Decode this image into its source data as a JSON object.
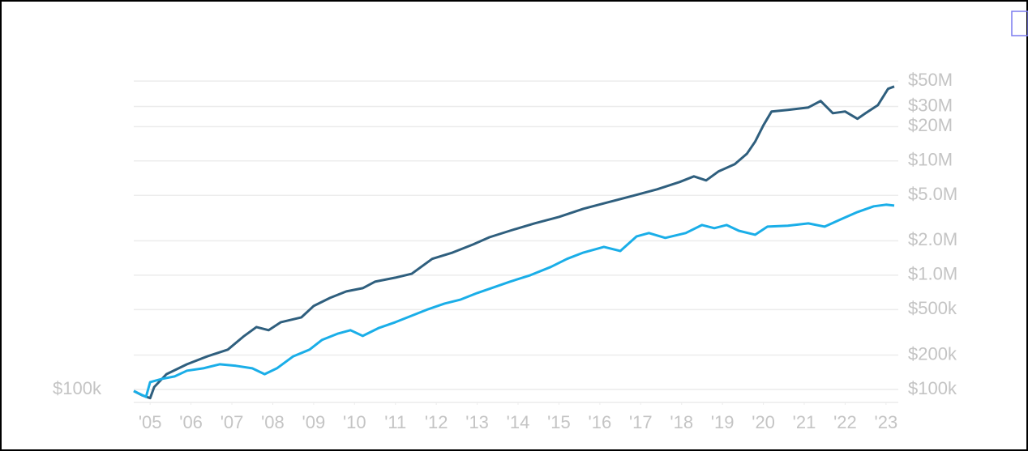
{
  "chart_data": {
    "type": "line",
    "annotation": "$100k",
    "log_scale": true,
    "grid": true,
    "xlim": [
      2004.6,
      2023.3
    ],
    "xticks": [
      {
        "value": 2005,
        "label": "'05"
      },
      {
        "value": 2006,
        "label": "'06"
      },
      {
        "value": 2007,
        "label": "'07"
      },
      {
        "value": 2008,
        "label": "'08"
      },
      {
        "value": 2009,
        "label": "'09"
      },
      {
        "value": 2010,
        "label": "'10"
      },
      {
        "value": 2011,
        "label": "'11"
      },
      {
        "value": 2012,
        "label": "'12"
      },
      {
        "value": 2013,
        "label": "'13"
      },
      {
        "value": 2014,
        "label": "'14"
      },
      {
        "value": 2015,
        "label": "'15"
      },
      {
        "value": 2016,
        "label": "'16"
      },
      {
        "value": 2017,
        "label": "'17"
      },
      {
        "value": 2018,
        "label": "'18"
      },
      {
        "value": 2019,
        "label": "'19"
      },
      {
        "value": 2020,
        "label": "'20"
      },
      {
        "value": 2021,
        "label": "'21"
      },
      {
        "value": 2022,
        "label": "'22"
      },
      {
        "value": 2023,
        "label": "'23"
      }
    ],
    "ylim": [
      77000,
      60000000
    ],
    "yticks": [
      {
        "value": 100000,
        "label": "$100k"
      },
      {
        "value": 200000,
        "label": "$200k"
      },
      {
        "value": 500000,
        "label": "$500k"
      },
      {
        "value": 1000000,
        "label": "$1.0M"
      },
      {
        "value": 2000000,
        "label": "$2.0M"
      },
      {
        "value": 5000000,
        "label": "$5.0M"
      },
      {
        "value": 10000000,
        "label": "$10M"
      },
      {
        "value": 20000000,
        "label": "$20M"
      },
      {
        "value": 30000000,
        "label": "$30M"
      },
      {
        "value": 50000000,
        "label": "$50M"
      }
    ],
    "series": [
      {
        "color": "#2f5f7e",
        "x": [
          2004.6,
          2004.8,
          2005.0,
          2005.1,
          2005.4,
          2005.9,
          2006.4,
          2006.9,
          2007.3,
          2007.6,
          2007.9,
          2008.2,
          2008.7,
          2009.0,
          2009.4,
          2009.8,
          2010.2,
          2010.5,
          2011.0,
          2011.4,
          2011.9,
          2012.4,
          2012.9,
          2013.3,
          2013.8,
          2014.4,
          2015.0,
          2015.6,
          2016.2,
          2016.8,
          2017.4,
          2017.95,
          2018.3,
          2018.6,
          2018.9,
          2019.3,
          2019.6,
          2019.8,
          2020.0,
          2020.2,
          2020.6,
          2021.1,
          2021.4,
          2021.7,
          2022.0,
          2022.3,
          2022.5,
          2022.8,
          2023.05,
          2023.2
        ],
        "values": [
          97000,
          89000,
          84000,
          105000,
          136000,
          166000,
          195000,
          223000,
          294000,
          352000,
          330000,
          388000,
          428000,
          538000,
          633000,
          721000,
          770000,
          878000,
          952000,
          1030000,
          1390000,
          1580000,
          1860000,
          2150000,
          2450000,
          2840000,
          3240000,
          3820000,
          4350000,
          4950000,
          5650000,
          6540000,
          7330000,
          6760000,
          8090000,
          9370000,
          11600000,
          14800000,
          20500000,
          27100000,
          28000000,
          29400000,
          33500000,
          26200000,
          27100000,
          23400000,
          26200000,
          30800000,
          42800000,
          44900000
        ]
      },
      {
        "color": "#1aaee8",
        "x": [
          2004.6,
          2004.9,
          2005.0,
          2005.3,
          2005.6,
          2005.9,
          2006.3,
          2006.7,
          2007.1,
          2007.5,
          2007.8,
          2008.1,
          2008.5,
          2008.9,
          2009.2,
          2009.6,
          2009.9,
          2010.2,
          2010.6,
          2011.0,
          2011.4,
          2011.8,
          2012.2,
          2012.6,
          2013.0,
          2013.4,
          2013.8,
          2014.3,
          2014.8,
          2015.2,
          2015.6,
          2016.1,
          2016.5,
          2016.9,
          2017.2,
          2017.6,
          2018.1,
          2018.5,
          2018.8,
          2019.1,
          2019.4,
          2019.8,
          2020.1,
          2020.6,
          2021.1,
          2021.5,
          2021.9,
          2022.3,
          2022.7,
          2023.0,
          2023.2
        ],
        "values": [
          97000,
          86000,
          116000,
          124000,
          130000,
          146000,
          153000,
          166000,
          161000,
          153000,
          136000,
          153000,
          195000,
          223000,
          271000,
          309000,
          330000,
          294000,
          346000,
          388000,
          442000,
          504000,
          565000,
          613000,
          698000,
          783000,
          878000,
          1000000,
          1180000,
          1390000,
          1580000,
          1770000,
          1630000,
          2190000,
          2340000,
          2120000,
          2340000,
          2750000,
          2580000,
          2750000,
          2450000,
          2260000,
          2660000,
          2710000,
          2840000,
          2660000,
          3090000,
          3570000,
          4010000,
          4140000,
          4070000
        ]
      }
    ]
  }
}
